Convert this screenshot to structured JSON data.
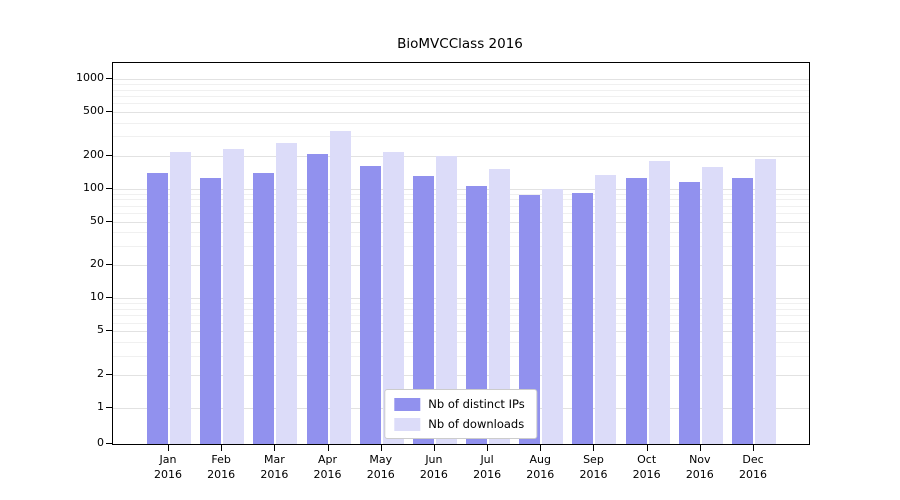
{
  "figure": {
    "background": "#ffffff",
    "plot_border_color": "#000000",
    "gridline_major_color": "#e2e2e2",
    "gridline_minor_color": "#f0f0f0"
  },
  "chart_data": {
    "type": "bar",
    "title": "BioMVCClass 2016",
    "categories": [
      "Jan 2016",
      "Feb 2016",
      "Mar 2016",
      "Apr 2016",
      "May 2016",
      "Jun 2016",
      "Jul 2016",
      "Aug 2016",
      "Sep 2016",
      "Oct 2016",
      "Nov 2016",
      "Dec 2016"
    ],
    "series": [
      {
        "name": "Nb of distinct IPs",
        "color": "#9191ee",
        "values": [
          140,
          125,
          140,
          205,
          160,
          130,
          105,
          88,
          92,
          125,
          115,
          125
        ]
      },
      {
        "name": "Nb of downloads",
        "color": "#dcdcf9",
        "values": [
          215,
          230,
          260,
          335,
          215,
          200,
          150,
          100,
          132,
          180,
          158,
          188
        ]
      }
    ],
    "xlabel": "",
    "ylabel": "",
    "yscale": "symlog",
    "ylim": [
      0,
      1000
    ],
    "yticks": [
      0,
      1,
      2,
      5,
      10,
      20,
      50,
      100,
      200,
      500,
      1000
    ],
    "grid": true,
    "legend_position": "lower center"
  }
}
